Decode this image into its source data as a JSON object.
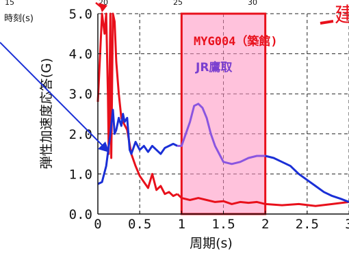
{
  "chart_data": {
    "type": "line",
    "xlabel": "周期(s)",
    "ylabel": "弾性加速度応答(G)",
    "xlim": [
      0,
      3
    ],
    "ylim": [
      0,
      5
    ],
    "x_ticks": [
      "0",
      "0.5",
      "1",
      "1.5",
      "2",
      "2.5",
      "3"
    ],
    "y_ticks": [
      "0.0",
      "1.0",
      "2.0",
      "3.0",
      "4.0",
      "5.0"
    ],
    "grid": true,
    "top_axis": {
      "label": "時刻(s)",
      "ticks": [
        "15",
        "20",
        "25",
        "30"
      ]
    },
    "highlight_region": {
      "x": [
        1,
        2
      ],
      "color": "#ff8fc0"
    },
    "annotations": {
      "station_label": "MYG004（築館)",
      "jr_label": "JR鷹取",
      "edge_text": "建"
    },
    "colors": {
      "red": "#e8101b",
      "blue": "#1a2fd6",
      "purple": "#8a55e0",
      "pink": "#ff8fc0"
    },
    "series": [
      {
        "color": "red",
        "x": [
          0.0,
          0.05,
          0.08,
          0.1,
          0.12,
          0.13,
          0.15,
          0.16,
          0.18,
          0.2,
          0.22,
          0.25,
          0.28,
          0.3,
          0.35,
          0.4,
          0.45,
          0.5,
          0.55,
          0.6,
          0.65,
          0.7,
          0.75,
          0.8,
          0.85,
          0.9,
          0.95,
          1.0,
          1.1,
          1.2,
          1.3,
          1.4,
          1.5,
          1.6,
          1.7,
          1.8,
          1.9,
          2.0,
          2.2,
          2.4,
          2.6,
          2.8,
          3.0
        ],
        "y": [
          2.8,
          5.0,
          4.5,
          5.0,
          3.0,
          1.5,
          5.0,
          1.4,
          5.0,
          4.8,
          3.8,
          3.0,
          2.4,
          2.3,
          2.1,
          1.5,
          1.2,
          0.95,
          0.8,
          0.65,
          1.0,
          0.6,
          0.7,
          0.5,
          0.55,
          0.45,
          0.5,
          0.4,
          0.35,
          0.4,
          0.35,
          0.3,
          0.32,
          0.25,
          0.3,
          0.28,
          0.3,
          0.25,
          0.22,
          0.25,
          0.2,
          0.25,
          0.3
        ]
      },
      {
        "color": "blue",
        "x": [
          0.0,
          0.05,
          0.1,
          0.15,
          0.18,
          0.2,
          0.22,
          0.25,
          0.28,
          0.3,
          0.32,
          0.35,
          0.38,
          0.4,
          0.45,
          0.5,
          0.55,
          0.6,
          0.65,
          0.7,
          0.75,
          0.8,
          0.85,
          0.9,
          0.95,
          1.0,
          1.05,
          1.1,
          1.15,
          1.2,
          1.25,
          1.3,
          1.35,
          1.4,
          1.5,
          1.6,
          1.7,
          1.8,
          1.9,
          2.0,
          2.1,
          2.2,
          2.3,
          2.4,
          2.5,
          2.6,
          2.7,
          2.8,
          2.9,
          3.0
        ],
        "y": [
          0.75,
          0.8,
          1.2,
          2.0,
          2.6,
          2.0,
          2.1,
          2.4,
          2.2,
          2.5,
          2.3,
          2.4,
          1.6,
          1.5,
          1.8,
          1.6,
          1.7,
          1.55,
          1.7,
          1.6,
          1.5,
          1.65,
          1.7,
          1.75,
          1.7,
          1.7,
          2.0,
          2.3,
          2.7,
          2.75,
          2.65,
          2.4,
          2.0,
          1.7,
          1.3,
          1.25,
          1.3,
          1.4,
          1.45,
          1.45,
          1.4,
          1.3,
          1.2,
          1.0,
          0.85,
          0.7,
          0.55,
          0.45,
          0.38,
          0.3
        ]
      }
    ]
  }
}
